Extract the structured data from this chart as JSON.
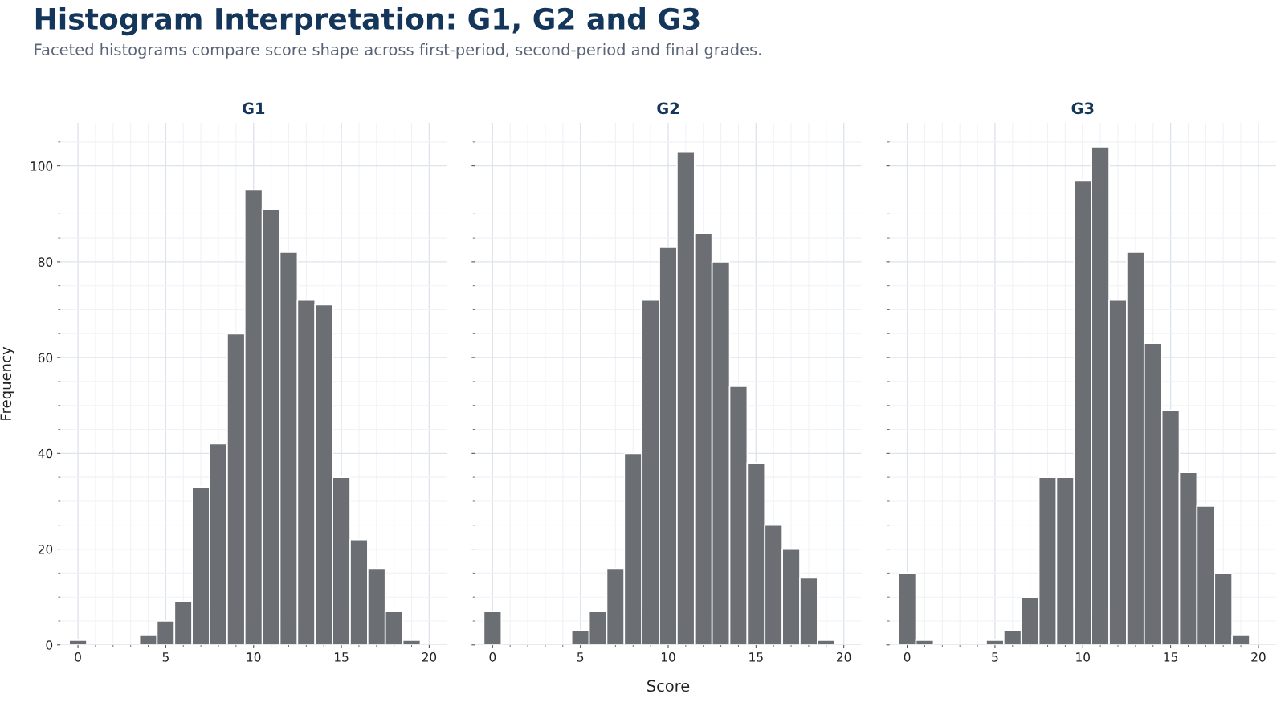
{
  "chart_data": [
    {
      "type": "histogram",
      "title": "Histogram Interpretation: G1, G2 and G3",
      "subtitle": "Faceted histograms compare score shape across first-period, second-period and final grades.",
      "legend_title": "G1",
      "ylabel": "Frequency",
      "color": "#6b6e72",
      "grid": true,
      "bins": [
        -0.5,
        0.5,
        1.5,
        2.5,
        3.5,
        4.5,
        5.5,
        6.5,
        7.5,
        8.5,
        9.5,
        10.5,
        11.5,
        12.5,
        13.5,
        14.5,
        15.5,
        16.5,
        17.5,
        18.5,
        19.5
      ],
      "values": [
        1,
        0,
        0,
        0,
        2,
        5,
        9,
        33,
        42,
        65,
        95,
        91,
        82,
        72,
        71,
        35,
        22,
        16,
        7,
        1
      ],
      "xlim": [
        -1,
        21
      ],
      "ylim": [
        0,
        109
      ],
      "xticks": [
        0,
        5,
        10,
        15,
        20,
        {
          "value": 1,
          "label": null
        },
        {
          "value": 2,
          "label": null
        },
        {
          "value": 3,
          "label": null
        },
        {
          "value": 4,
          "label": null
        },
        {
          "value": 6,
          "label": null
        },
        {
          "value": 7,
          "label": null
        },
        {
          "value": 8,
          "label": null
        },
        {
          "value": 9,
          "label": null
        },
        {
          "value": 11,
          "label": null
        },
        {
          "value": 12,
          "label": null
        },
        {
          "value": 13,
          "label": null
        },
        {
          "value": 14,
          "label": null
        },
        {
          "value": 16,
          "label": null
        },
        {
          "value": 17,
          "label": null
        },
        {
          "value": 18,
          "label": null
        },
        {
          "value": 19,
          "label": null
        }
      ],
      "yticks": [
        0,
        20,
        40,
        60,
        80,
        100,
        {
          "value": 5,
          "label": null
        },
        {
          "value": 10,
          "label": null
        },
        {
          "value": 15,
          "label": null
        },
        {
          "value": 25,
          "label": null
        },
        {
          "value": 30,
          "label": null
        },
        {
          "value": 35,
          "label": null
        },
        {
          "value": 45,
          "label": null
        },
        {
          "value": 50,
          "label": null
        },
        {
          "value": 55,
          "label": null
        },
        {
          "value": 65,
          "label": null
        },
        {
          "value": 70,
          "label": null
        },
        {
          "value": 75,
          "label": null
        },
        {
          "value": 85,
          "label": null
        },
        {
          "value": 90,
          "label": null
        },
        {
          "value": 95,
          "label": null
        },
        {
          "value": 105,
          "label": null
        }
      ]
    },
    {
      "type": "histogram",
      "legend_title": "G2",
      "xlabel": "Score",
      "color": "#6b6e72",
      "grid": true,
      "tick_labels": "x",
      "bins": [
        -0.5,
        0.5,
        1.5,
        2.5,
        3.5,
        4.5,
        5.5,
        6.5,
        7.5,
        8.5,
        9.5,
        10.5,
        11.5,
        12.5,
        13.5,
        14.5,
        15.5,
        16.5,
        17.5,
        18.5,
        19.5
      ],
      "values": [
        7,
        0,
        0,
        0,
        0,
        3,
        7,
        16,
        40,
        72,
        83,
        103,
        86,
        80,
        54,
        38,
        25,
        20,
        14,
        1
      ],
      "xlim": [
        -1,
        21
      ],
      "ylim": [
        0,
        109
      ],
      "xticks": [
        0,
        5,
        10,
        15,
        20,
        {
          "value": 1,
          "label": null
        },
        {
          "value": 2,
          "label": null
        },
        {
          "value": 3,
          "label": null
        },
        {
          "value": 4,
          "label": null
        },
        {
          "value": 6,
          "label": null
        },
        {
          "value": 7,
          "label": null
        },
        {
          "value": 8,
          "label": null
        },
        {
          "value": 9,
          "label": null
        },
        {
          "value": 11,
          "label": null
        },
        {
          "value": 12,
          "label": null
        },
        {
          "value": 13,
          "label": null
        },
        {
          "value": 14,
          "label": null
        },
        {
          "value": 16,
          "label": null
        },
        {
          "value": 17,
          "label": null
        },
        {
          "value": 18,
          "label": null
        },
        {
          "value": 19,
          "label": null
        }
      ],
      "yticks": [
        0,
        20,
        40,
        60,
        80,
        100,
        {
          "value": 5,
          "label": null
        },
        {
          "value": 10,
          "label": null
        },
        {
          "value": 15,
          "label": null
        },
        {
          "value": 25,
          "label": null
        },
        {
          "value": 30,
          "label": null
        },
        {
          "value": 35,
          "label": null
        },
        {
          "value": 45,
          "label": null
        },
        {
          "value": 50,
          "label": null
        },
        {
          "value": 55,
          "label": null
        },
        {
          "value": 65,
          "label": null
        },
        {
          "value": 70,
          "label": null
        },
        {
          "value": 75,
          "label": null
        },
        {
          "value": 85,
          "label": null
        },
        {
          "value": 90,
          "label": null
        },
        {
          "value": 95,
          "label": null
        },
        {
          "value": 105,
          "label": null
        }
      ]
    },
    {
      "type": "histogram",
      "legend_title": "G3",
      "color": "#6b6e72",
      "grid": true,
      "tick_labels": "x",
      "bins": [
        -0.5,
        0.5,
        1.5,
        2.5,
        3.5,
        4.5,
        5.5,
        6.5,
        7.5,
        8.5,
        9.5,
        10.5,
        11.5,
        12.5,
        13.5,
        14.5,
        15.5,
        16.5,
        17.5,
        18.5,
        19.5
      ],
      "values": [
        15,
        1,
        0,
        0,
        0,
        1,
        3,
        10,
        35,
        35,
        97,
        104,
        72,
        82,
        63,
        49,
        36,
        29,
        15,
        2
      ],
      "xlim": [
        -1,
        21
      ],
      "ylim": [
        0,
        109
      ],
      "xticks": [
        0,
        5,
        10,
        15,
        20,
        {
          "value": 1,
          "label": null
        },
        {
          "value": 2,
          "label": null
        },
        {
          "value": 3,
          "label": null
        },
        {
          "value": 4,
          "label": null
        },
        {
          "value": 6,
          "label": null
        },
        {
          "value": 7,
          "label": null
        },
        {
          "value": 8,
          "label": null
        },
        {
          "value": 9,
          "label": null
        },
        {
          "value": 11,
          "label": null
        },
        {
          "value": 12,
          "label": null
        },
        {
          "value": 13,
          "label": null
        },
        {
          "value": 14,
          "label": null
        },
        {
          "value": 16,
          "label": null
        },
        {
          "value": 17,
          "label": null
        },
        {
          "value": 18,
          "label": null
        },
        {
          "value": 19,
          "label": null
        }
      ],
      "yticks": [
        0,
        20,
        40,
        60,
        80,
        100,
        {
          "value": 5,
          "label": null
        },
        {
          "value": 10,
          "label": null
        },
        {
          "value": 15,
          "label": null
        },
        {
          "value": 25,
          "label": null
        },
        {
          "value": 30,
          "label": null
        },
        {
          "value": 35,
          "label": null
        },
        {
          "value": 45,
          "label": null
        },
        {
          "value": 50,
          "label": null
        },
        {
          "value": 55,
          "label": null
        },
        {
          "value": 65,
          "label": null
        },
        {
          "value": 70,
          "label": null
        },
        {
          "value": 75,
          "label": null
        },
        {
          "value": 85,
          "label": null
        },
        {
          "value": 90,
          "label": null
        },
        {
          "value": 95,
          "label": null
        },
        {
          "value": 105,
          "label": null
        }
      ]
    }
  ]
}
